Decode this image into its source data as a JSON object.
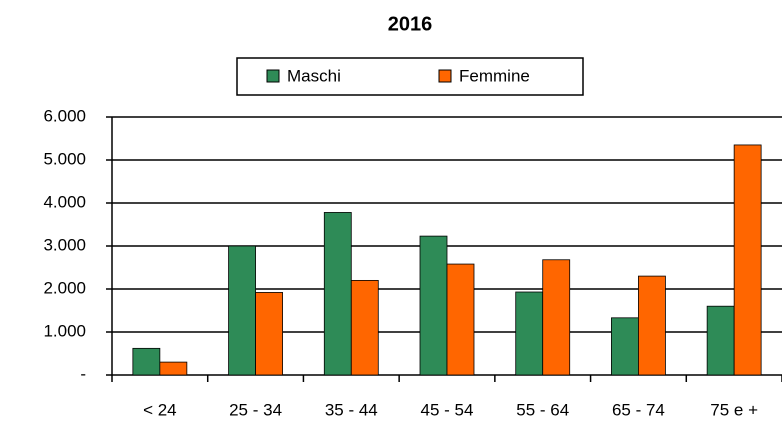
{
  "chart_data": {
    "type": "bar",
    "title": "2016",
    "categories": [
      "< 24",
      "25 - 34",
      "35 - 44",
      "45 - 54",
      "55 - 64",
      "65 - 74",
      "75 e +"
    ],
    "series": [
      {
        "name": "Maschi",
        "color": "#2e8b57",
        "values": [
          620,
          3000,
          3780,
          3230,
          1930,
          1330,
          1600
        ]
      },
      {
        "name": "Femmine",
        "color": "#ff6600",
        "values": [
          300,
          1920,
          2200,
          2580,
          2680,
          2300,
          5350
        ]
      }
    ],
    "ylim": [
      0,
      6000
    ],
    "yticks": [
      {
        "value": 0,
        "label": "-"
      },
      {
        "value": 1000,
        "label": "1.000"
      },
      {
        "value": 2000,
        "label": "2.000"
      },
      {
        "value": 3000,
        "label": "3.000"
      },
      {
        "value": 4000,
        "label": "4.000"
      },
      {
        "value": 5000,
        "label": "5.000"
      },
      {
        "value": 6000,
        "label": "6.000"
      }
    ],
    "grid": true,
    "legend": "top"
  }
}
